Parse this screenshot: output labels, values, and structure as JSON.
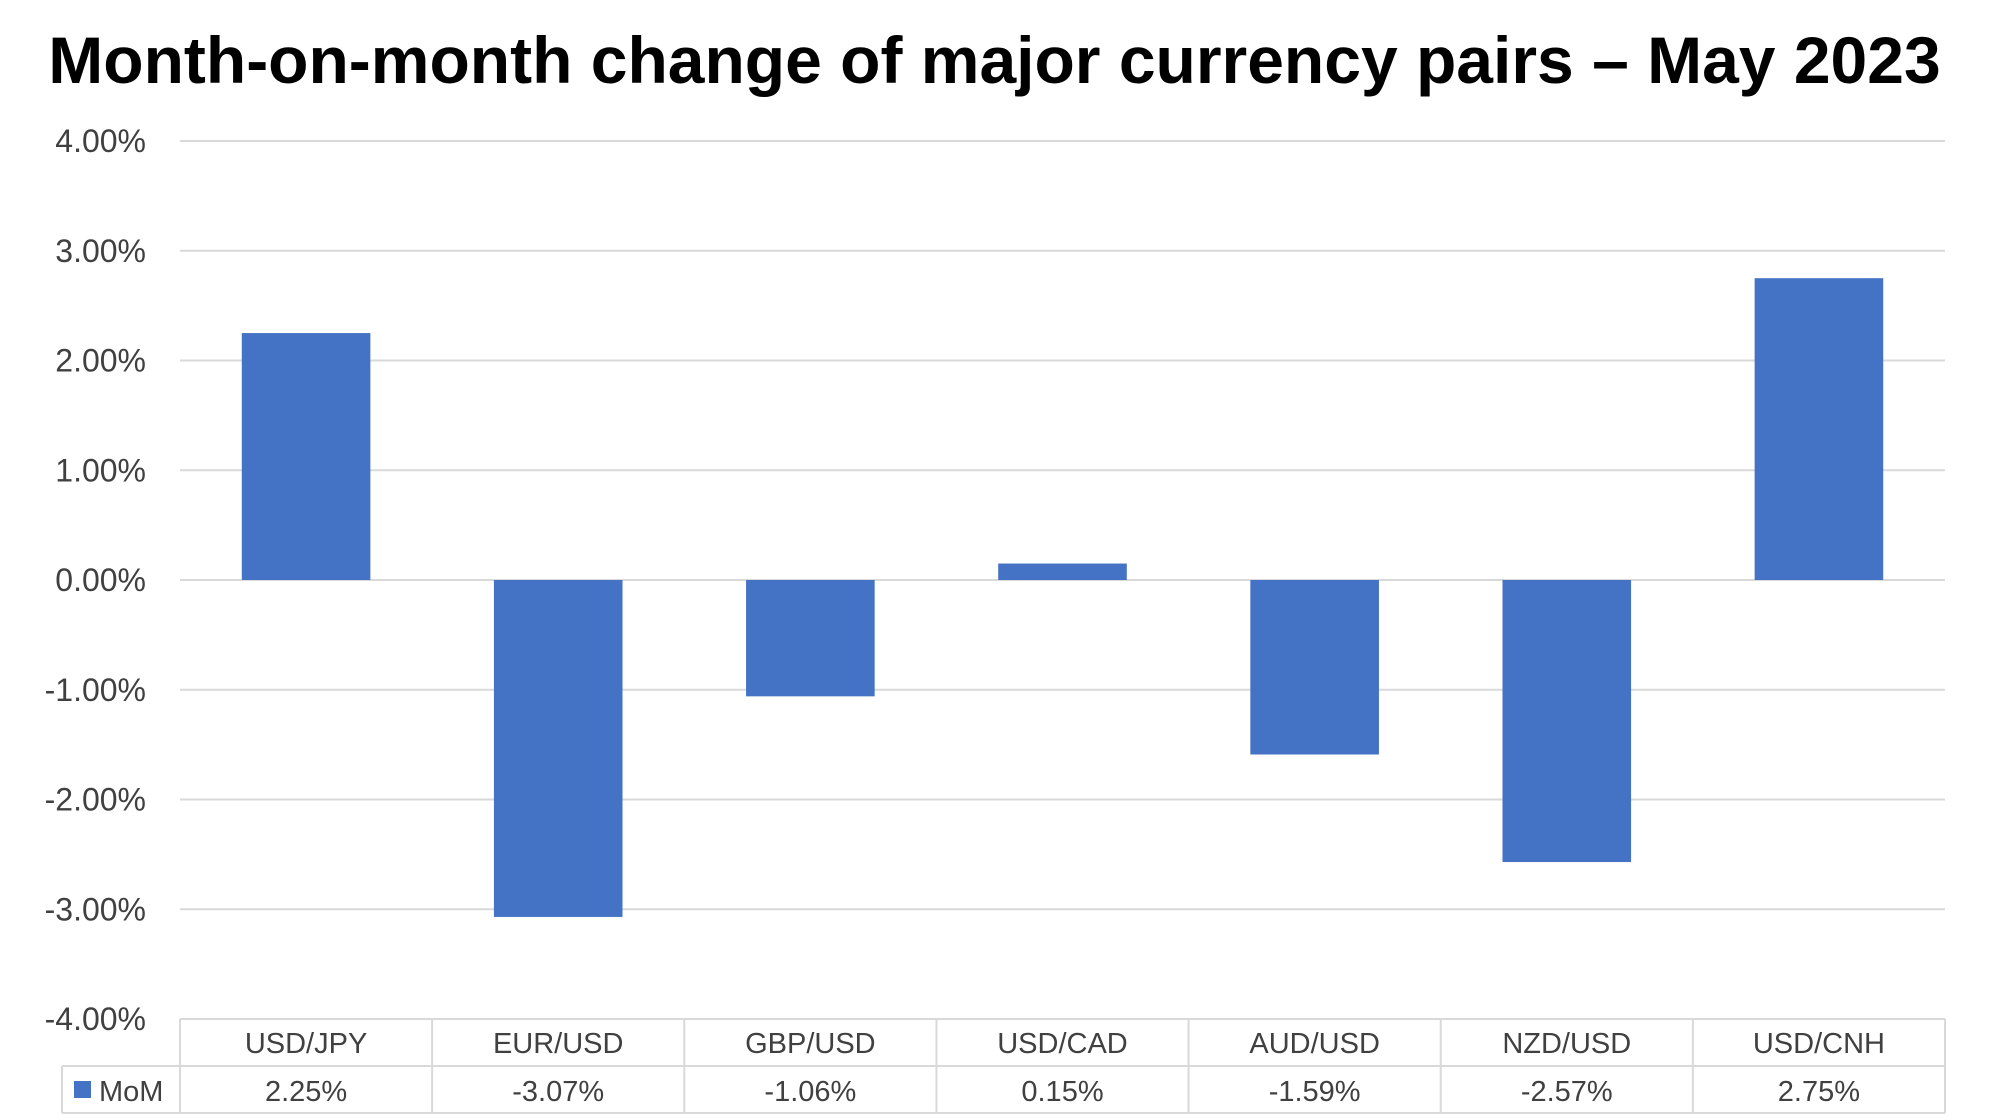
{
  "chart_data": {
    "type": "bar",
    "title": "Month-on-month change of major currency pairs – May 2023",
    "categories": [
      "USD/JPY",
      "EUR/USD",
      "GBP/USD",
      "USD/CAD",
      "AUD/USD",
      "NZD/USD",
      "USD/CNH"
    ],
    "series": [
      {
        "name": "MoM",
        "values": [
          2.25,
          -3.07,
          -1.06,
          0.15,
          -1.59,
          -2.57,
          2.75
        ],
        "labels": [
          "2.25%",
          "-3.07%",
          "-1.06%",
          "0.15%",
          "-1.59%",
          "-2.57%",
          "2.75%"
        ]
      }
    ],
    "ylim": [
      -4,
      4
    ],
    "yticks": [
      4,
      3,
      2,
      1,
      0,
      -1,
      -2,
      -3,
      -4
    ],
    "ytick_labels": [
      "4.00%",
      "3.00%",
      "2.00%",
      "1.00%",
      "0.00%",
      "-1.00%",
      "-2.00%",
      "-3.00%",
      "-4.00%"
    ],
    "grid": true,
    "legend": "data-table",
    "bar_color": "#4472C4",
    "grid_color": "#D9D9D9",
    "axis_text_color": "#404040"
  }
}
